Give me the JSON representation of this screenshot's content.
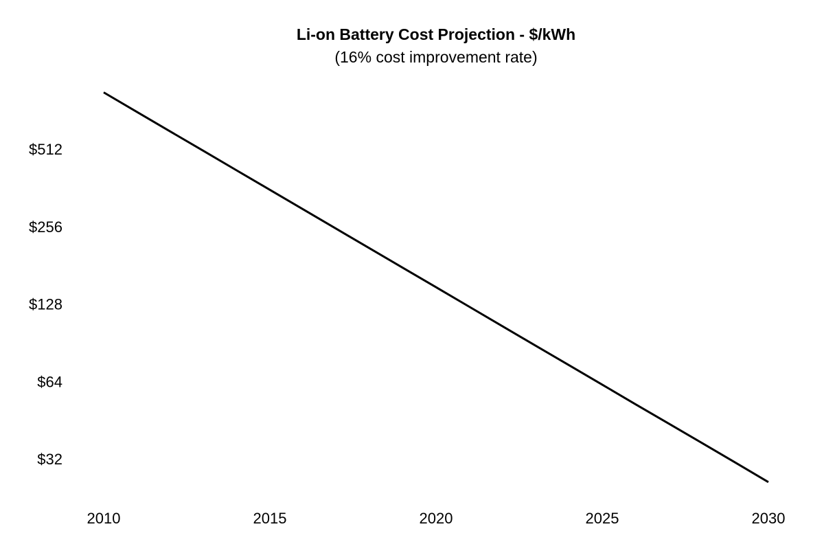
{
  "chart_data": {
    "type": "line",
    "title": "Li-on Battery Cost Projection - $/kWh",
    "subtitle": "(16% cost improvement rate)",
    "xlabel": "",
    "ylabel": "",
    "y_scale": "log2",
    "grid": false,
    "line_color": "#000000",
    "x": [
      2010,
      2011,
      2012,
      2013,
      2014,
      2015,
      2016,
      2017,
      2018,
      2019,
      2020,
      2021,
      2022,
      2023,
      2024,
      2025,
      2026,
      2027,
      2028,
      2029,
      2030
    ],
    "values": [
      850,
      714,
      599.8,
      503.8,
      423.2,
      355.5,
      298.6,
      250.8,
      210.7,
      177.0,
      148.7,
      124.9,
      104.9,
      88.1,
      74.0,
      62.2,
      52.2,
      43.9,
      36.9,
      31.0,
      26.0
    ],
    "xlim": [
      2010,
      2030
    ],
    "x_ticks": [
      2010,
      2015,
      2020,
      2025,
      2030
    ],
    "x_tick_labels": [
      "2010",
      "2015",
      "2020",
      "2025",
      "2030"
    ],
    "y_ticks": [
      512,
      256,
      128,
      64,
      32
    ],
    "y_tick_labels": [
      "$512",
      "$256",
      "$128",
      "$64",
      "$32"
    ]
  }
}
